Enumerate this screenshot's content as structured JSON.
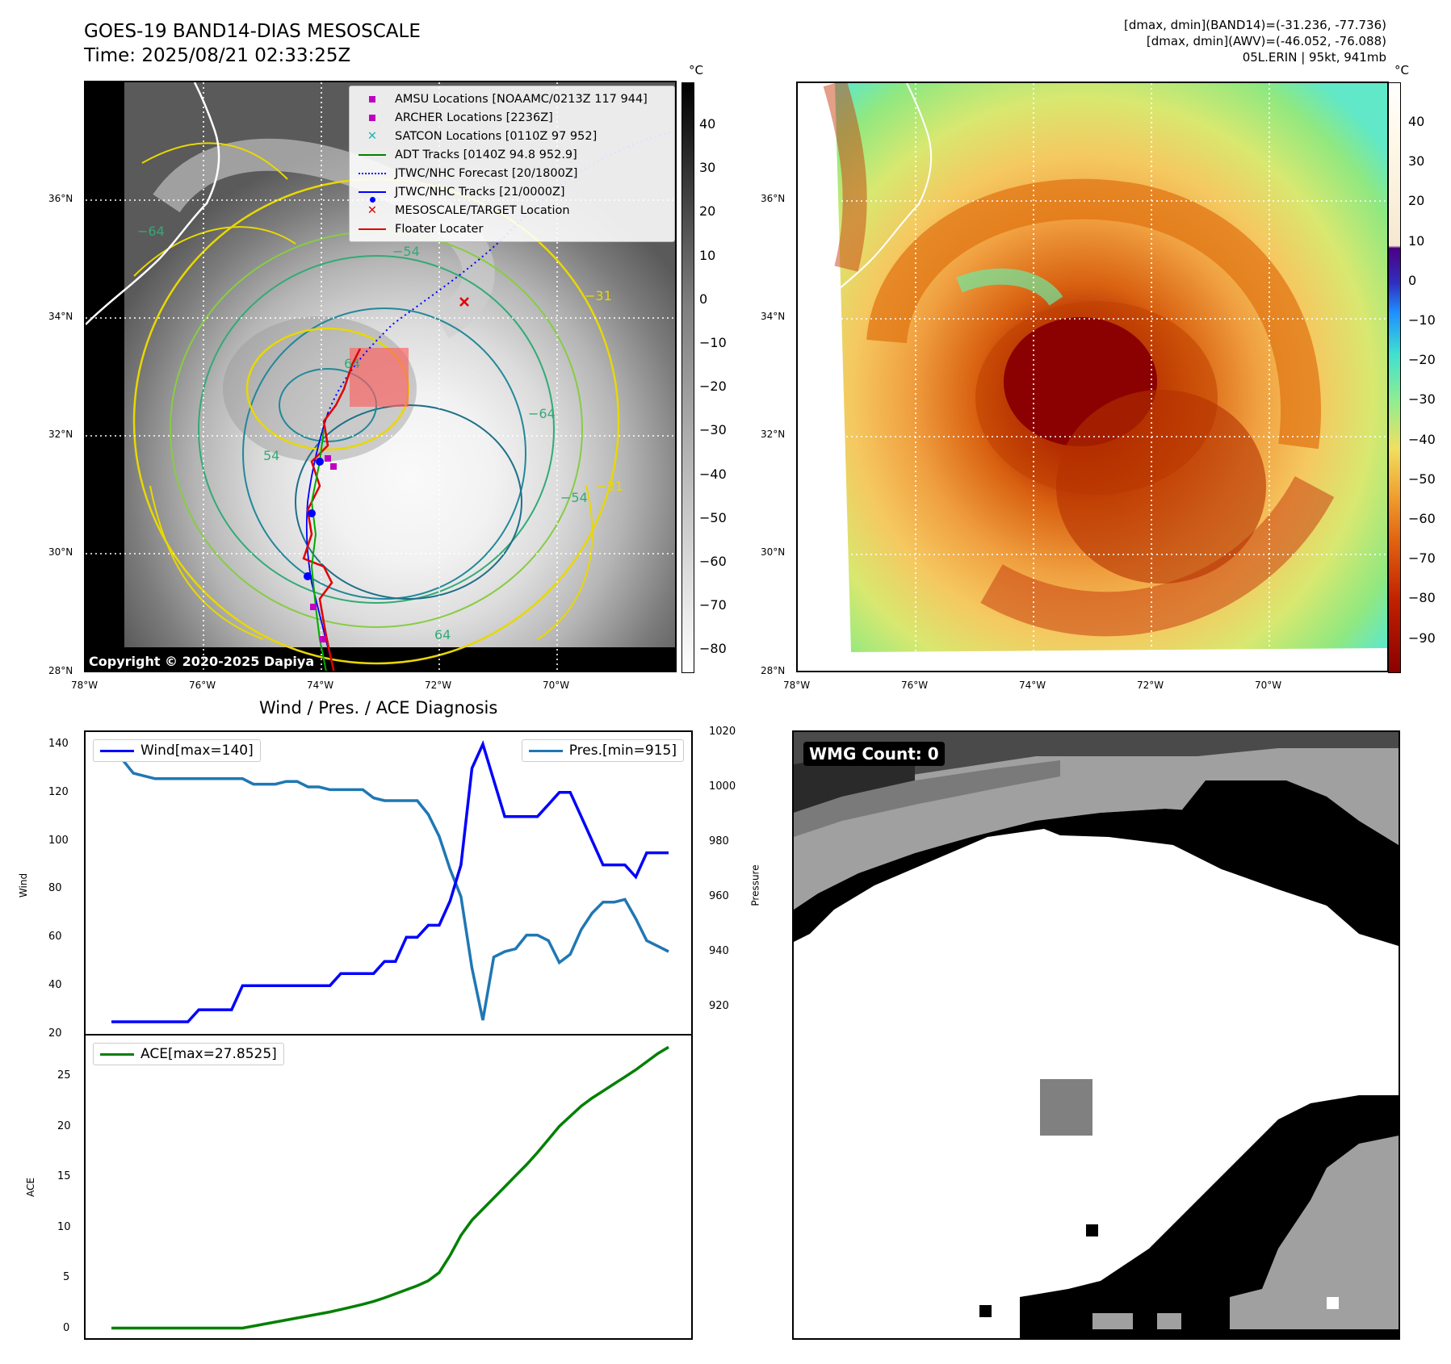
{
  "header": {
    "title_line1": "GOES-19 BAND14-DIAS MESOSCALE",
    "title_line2": "Time: 2025/08/21 02:33:25Z",
    "info_line1": "[dmax, dmin](BAND14)=(-31.236, -77.736)",
    "info_line2": "[dmax, dmin](AWV)=(-46.052, -76.088)",
    "info_line3": "05L.ERIN | 95kt, 941mb"
  },
  "map_left": {
    "copyright": "Copyright © 2020-2025 Dapiya",
    "unit": "°C",
    "colorbar_ticks": [
      "40",
      "30",
      "20",
      "10",
      "0",
      "−10",
      "−20",
      "−30",
      "−40",
      "−50",
      "−60",
      "−70",
      "−80"
    ],
    "contour_labels": [
      "−54",
      "−31",
      "64",
      "−64",
      "−54",
      "−31",
      "54",
      "−64",
      "64"
    ],
    "legend": [
      {
        "label": "AMSU Locations [NOAAMC/0213Z 117 944]",
        "color": "#c000c0",
        "symbol": "square"
      },
      {
        "label": "ARCHER Locations [2236Z]",
        "color": "#c000c0",
        "symbol": "square"
      },
      {
        "label": "SATCON Locations [0110Z 97 952]",
        "color": "#1ab6b6",
        "symbol": "x"
      },
      {
        "label": "ADT Tracks [0140Z 94.8 952.9]",
        "color": "#008000",
        "symbol": "line"
      },
      {
        "label": "JTWC/NHC Forecast [20/1800Z]",
        "color": "#0000ff",
        "symbol": "dotted"
      },
      {
        "label": "JTWC/NHC Tracks [21/0000Z]",
        "color": "#0000ff",
        "symbol": "dotline"
      },
      {
        "label": "MESOSCALE/TARGET Location",
        "color": "#e00000",
        "symbol": "x"
      },
      {
        "label": "Floater Locater",
        "color": "#e00000",
        "symbol": "line"
      }
    ]
  },
  "map_axes": {
    "lat_labels": [
      "36°N",
      "34°N",
      "32°N",
      "30°N",
      "28°N"
    ],
    "lon_labels": [
      "78°W",
      "76°W",
      "74°W",
      "72°W",
      "70°W"
    ]
  },
  "map_right": {
    "unit": "°C",
    "colorbar_ticks": [
      "40",
      "30",
      "20",
      "10",
      "0",
      "−10",
      "−20",
      "−30",
      "−40",
      "−50",
      "−60",
      "−70",
      "−80",
      "−90"
    ]
  },
  "diag": {
    "title": "Wind / Pres. / ACE Diagnosis",
    "wind_legend": "Wind[max=140]",
    "pres_legend": "Pres.[min=915]",
    "ace_legend": "ACE[max=27.8525]",
    "wind_axis_label": "Wind",
    "pres_axis_label": "Pressure",
    "ace_axis_label": "ACE"
  },
  "wmg": {
    "label": "WMG Count: 0"
  },
  "chart_data": [
    {
      "type": "line",
      "title": "Wind / Pres. / ACE Diagnosis",
      "series": [
        {
          "name": "Wind[max=140]",
          "axis": "left",
          "color": "#0000ff",
          "values": [
            25,
            25,
            25,
            25,
            25,
            25,
            25,
            25,
            30,
            30,
            30,
            30,
            40,
            40,
            40,
            40,
            40,
            40,
            40,
            40,
            40,
            45,
            45,
            45,
            45,
            50,
            50,
            60,
            60,
            65,
            65,
            75,
            90,
            130,
            140,
            125,
            110,
            110,
            110,
            110,
            115,
            120,
            120,
            110,
            100,
            90,
            90,
            90,
            85,
            95,
            95,
            95
          ]
        },
        {
          "name": "Pres.[min=915]",
          "axis": "right",
          "color": "#1f77b4",
          "values": [
            1010,
            1010,
            1005,
            1004,
            1003,
            1003,
            1003,
            1003,
            1003,
            1003,
            1003,
            1003,
            1003,
            1001,
            1001,
            1001,
            1002,
            1002,
            1000,
            1000,
            999,
            999,
            999,
            999,
            996,
            995,
            995,
            995,
            995,
            990,
            982,
            970,
            960,
            934,
            915,
            938,
            940,
            941,
            946,
            946,
            944,
            936,
            939,
            948,
            954,
            958,
            958,
            959,
            952,
            944,
            942,
            940
          ]
        },
        {
          "name": "ACE[max=27.8525]",
          "axis": "ace",
          "color": "#008000",
          "values": [
            0,
            0,
            0,
            0,
            0,
            0,
            0,
            0,
            0,
            0,
            0,
            0,
            0,
            0.2,
            0.4,
            0.6,
            0.8,
            1.0,
            1.2,
            1.4,
            1.6,
            1.85,
            2.1,
            2.35,
            2.65,
            3.0,
            3.4,
            3.8,
            4.2,
            4.7,
            5.5,
            7.2,
            9.2,
            10.7,
            11.8,
            12.9,
            14.0,
            15.1,
            16.2,
            17.4,
            18.7,
            20.0,
            21.0,
            22.0,
            22.8,
            23.5,
            24.2,
            24.9,
            25.6,
            26.4,
            27.2,
            27.85
          ]
        }
      ],
      "wind_ylim": [
        20,
        145
      ],
      "pres_ylim": [
        910,
        1020
      ],
      "ace_ylim": [
        -1,
        29
      ],
      "wind_ticks": [
        20,
        40,
        60,
        80,
        100,
        120,
        140
      ],
      "pres_ticks": [
        920,
        940,
        960,
        980,
        1000,
        1020
      ],
      "ace_ticks": [
        0,
        5,
        10,
        15,
        20,
        25
      ]
    }
  ]
}
